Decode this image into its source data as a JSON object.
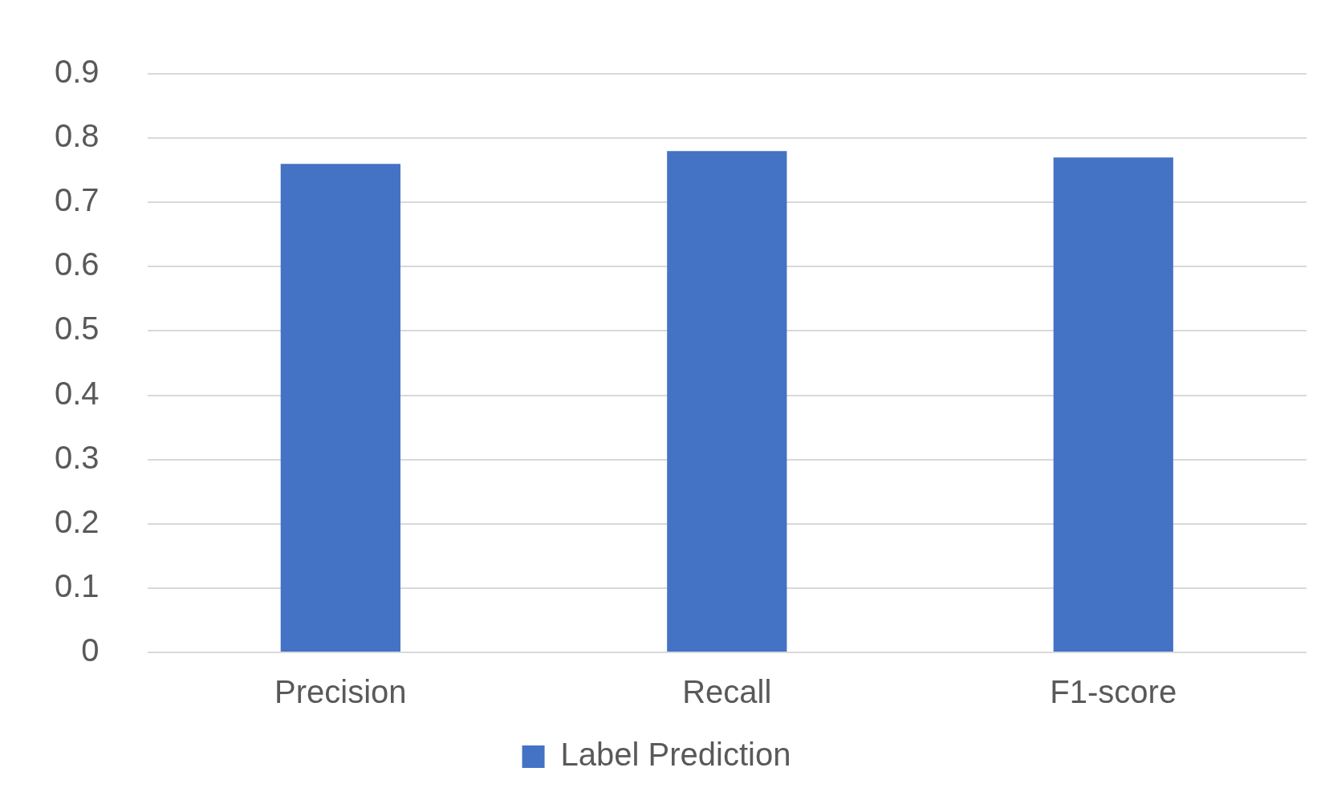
{
  "chart_data": {
    "type": "bar",
    "categories": [
      "Precision",
      "Recall",
      "F1-score"
    ],
    "series": [
      {
        "name": "Label Prediction",
        "color": "#4472c4",
        "values": [
          0.76,
          0.78,
          0.77
        ]
      }
    ],
    "ylim": [
      0,
      0.9
    ],
    "yticks": [
      0,
      0.1,
      0.2,
      0.3,
      0.4,
      0.5,
      0.6,
      0.7,
      0.8,
      0.9
    ],
    "grid": "y",
    "legend": "bottom"
  }
}
